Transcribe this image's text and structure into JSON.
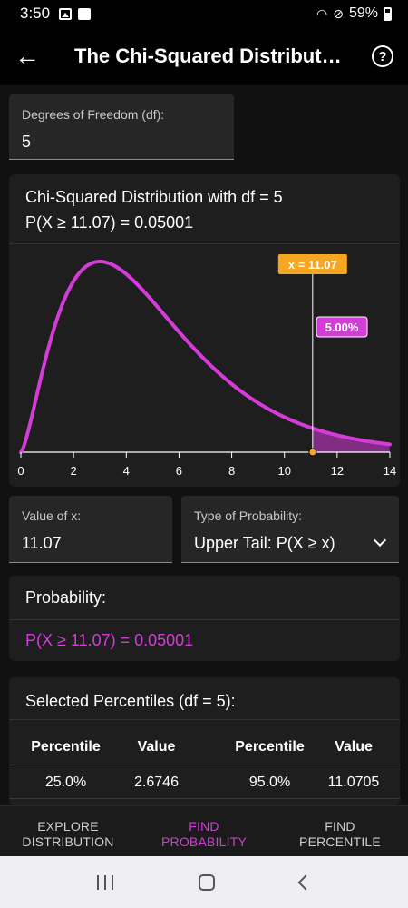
{
  "status_bar": {
    "time": "3:50",
    "battery": "59%"
  },
  "app_bar": {
    "title": "The Chi-Squared Distribution",
    "back_icon": "arrow-left-icon",
    "help_icon": "help-circle-icon"
  },
  "df_field": {
    "label": "Degrees of Freedom (df):",
    "value": "5"
  },
  "chart_card": {
    "title_line1": "Chi-Squared Distribution with df = 5",
    "title_line2": "P(X ≥ 11.07) = 0.05001"
  },
  "chart_data": {
    "type": "area",
    "distribution": "chi-squared",
    "df": 5,
    "x_ticks": [
      "0",
      "2",
      "4",
      "6",
      "8",
      "10",
      "12",
      "14"
    ],
    "xlim": [
      0,
      14
    ],
    "marker_x": 11.07,
    "marker_label": "x = 11.07",
    "shaded_region": "upper-tail",
    "shaded_label": "5.00%",
    "curve_color": "#d43bd9",
    "marker_color": "#f5a623"
  },
  "x_field": {
    "label": "Value of x:",
    "value": "11.07"
  },
  "prob_type_field": {
    "label": "Type of Probability:",
    "value": "Upper Tail: P(X ≥ x)"
  },
  "probability_card": {
    "heading": "Probability:",
    "value": "P(X ≥ 11.07) = 0.05001"
  },
  "percentiles_card": {
    "heading": "Selected Percentiles (df = 5):",
    "columns": [
      "Percentile",
      "Value",
      "Percentile",
      "Value"
    ],
    "rows": [
      [
        "25.0%",
        "2.6746",
        "95.0%",
        "11.0705"
      ]
    ]
  },
  "bottom_nav": [
    {
      "line1": "Explore",
      "line2": "Distribution",
      "active": false
    },
    {
      "line1": "Find",
      "line2": "Probability",
      "active": true
    },
    {
      "line1": "Find",
      "line2": "Percentile",
      "active": false
    }
  ]
}
